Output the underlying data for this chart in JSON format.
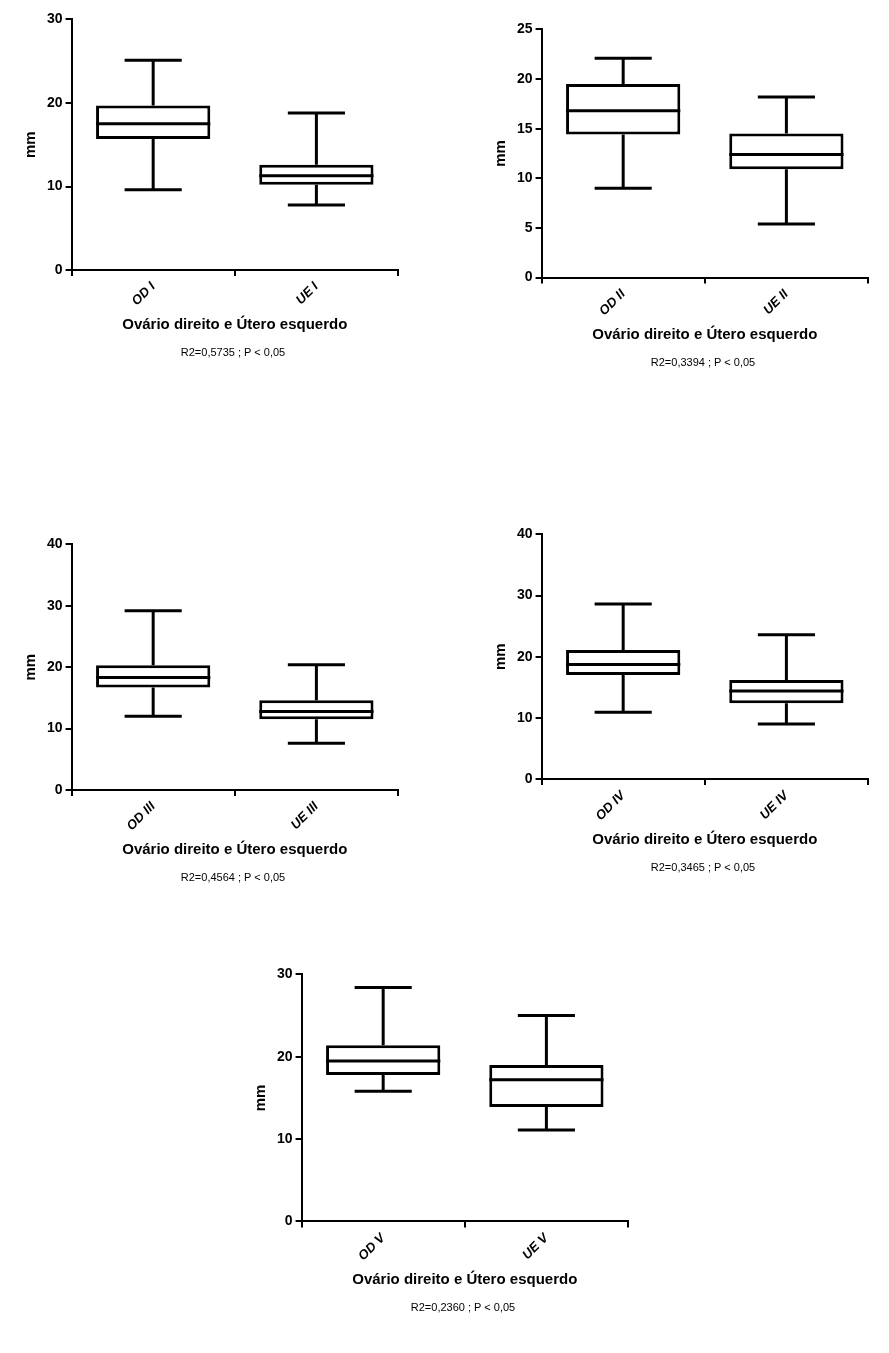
{
  "chart_data": [
    {
      "type": "box",
      "categories": [
        "OD I",
        "UE I"
      ],
      "ylabel": "mm",
      "xlabel": "Ovário direito e Útero esquerdo",
      "annotations": [
        "R2=0,5735 ; P < 0,05"
      ],
      "ylim": [
        0,
        30
      ],
      "yticks": [
        0,
        10,
        20,
        30
      ],
      "grid": false,
      "boxes": [
        {
          "low": 9.6,
          "q1": 15.7,
          "median": 17.5,
          "q3": 19.7,
          "high": 25.1
        },
        {
          "low": 7.8,
          "q1": 10.2,
          "median": 11.3,
          "q3": 12.6,
          "high": 18.8
        }
      ]
    },
    {
      "type": "box",
      "categories": [
        "OD II",
        "UE II"
      ],
      "ylabel": "mm",
      "xlabel": "Ovário direito e Útero esquerdo",
      "annotations": [
        "R2=0,3394 ; P < 0,05"
      ],
      "ylim": [
        0,
        25
      ],
      "yticks": [
        0,
        5,
        10,
        15,
        20,
        25
      ],
      "grid": false,
      "boxes": [
        {
          "low": 9.0,
          "q1": 14.4,
          "median": 16.8,
          "q3": 19.5,
          "high": 22.1
        },
        {
          "low": 5.4,
          "q1": 10.9,
          "median": 12.4,
          "q3": 14.5,
          "high": 18.2
        }
      ]
    },
    {
      "type": "box",
      "categories": [
        "OD III",
        "UE III"
      ],
      "ylabel": "mm",
      "xlabel": "Ovário direito e Útero esquerdo",
      "annotations": [
        "R2=0,4564 ; P < 0,05"
      ],
      "ylim": [
        0,
        40
      ],
      "yticks": [
        0,
        10,
        20,
        30,
        40
      ],
      "grid": false,
      "boxes": [
        {
          "low": 12.0,
          "q1": 16.7,
          "median": 18.3,
          "q3": 20.3,
          "high": 29.2
        },
        {
          "low": 7.6,
          "q1": 11.5,
          "median": 12.8,
          "q3": 14.6,
          "high": 20.4
        }
      ]
    },
    {
      "type": "box",
      "categories": [
        "OD IV",
        "UE IV"
      ],
      "ylabel": "mm",
      "xlabel": "Ovário direito e Útero esquerdo",
      "annotations": [
        "R2=0,3465 ; P < 0,05"
      ],
      "ylim": [
        0,
        40
      ],
      "yticks": [
        0,
        10,
        20,
        30,
        40
      ],
      "grid": false,
      "boxes": [
        {
          "low": 10.9,
          "q1": 17.0,
          "median": 18.7,
          "q3": 21.1,
          "high": 28.6
        },
        {
          "low": 9.0,
          "q1": 12.4,
          "median": 14.4,
          "q3": 16.2,
          "high": 23.6
        }
      ]
    },
    {
      "type": "box",
      "categories": [
        "OD V",
        "UE V"
      ],
      "ylabel": "mm",
      "xlabel": "Ovário direito e Útero esquerdo",
      "annotations": [
        "R2=0,2360 ; P < 0,05"
      ],
      "ylim": [
        0,
        30
      ],
      "yticks": [
        0,
        10,
        20,
        30
      ],
      "grid": false,
      "boxes": [
        {
          "low": 15.8,
          "q1": 17.8,
          "median": 19.5,
          "q3": 21.4,
          "high": 28.4
        },
        {
          "low": 11.1,
          "q1": 13.9,
          "median": 17.2,
          "q3": 19.0,
          "high": 25.0
        }
      ]
    }
  ]
}
